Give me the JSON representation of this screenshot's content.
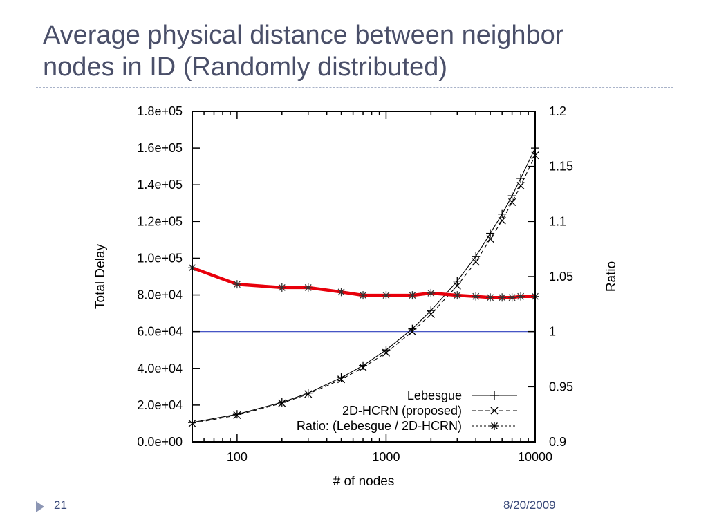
{
  "slide": {
    "title_line1": "Average physical distance between neighbor",
    "title_line2": "nodes in ID (Randomly distributed)",
    "page_number": "21",
    "date": "8/20/2009"
  },
  "chart_data": {
    "type": "line",
    "xlabel": "# of nodes",
    "ylabel_left": "Total Delay",
    "ylabel_right": "Ratio",
    "x_scale": "log",
    "xlim": [
      50,
      10000
    ],
    "ylim_left": [
      0,
      180000
    ],
    "ylim_right": [
      0.9,
      1.2
    ],
    "x_ticks": [
      100,
      1000,
      10000
    ],
    "x_tick_labels": [
      "100",
      "1000",
      "10000"
    ],
    "y_left_ticks": [
      0,
      20000,
      40000,
      60000,
      80000,
      100000,
      120000,
      140000,
      160000,
      180000
    ],
    "y_left_tick_labels": [
      "0.0e+00",
      "2.0e+04",
      "4.0e+04",
      "6.0e+04",
      "8.0e+04",
      "1.0e+05",
      "1.2e+05",
      "1.4e+05",
      "1.6e+05",
      "1.8e+05"
    ],
    "y_right_ticks": [
      0.9,
      0.95,
      1.0,
      1.05,
      1.1,
      1.15,
      1.2
    ],
    "y_right_tick_labels": [
      "0.9",
      "0.95",
      "1",
      "1.05",
      "1.1",
      "1.15",
      "1.2"
    ],
    "grid": false,
    "legend_position": "bottom-right",
    "x": [
      50,
      100,
      200,
      300,
      500,
      700,
      1000,
      1500,
      2000,
      3000,
      4000,
      5000,
      6000,
      7000,
      8000,
      10000
    ],
    "series": [
      {
        "name": "Lebesgue",
        "axis": "left",
        "color": "#000000",
        "dash": "solid",
        "marker": "plus",
        "values": [
          10500,
          15000,
          21500,
          26500,
          35000,
          41500,
          50000,
          61500,
          71500,
          87500,
          101000,
          113500,
          124000,
          134000,
          143500,
          160000
        ]
      },
      {
        "name": "2D-HCRN (proposed)",
        "axis": "left",
        "color": "#000000",
        "dash": "dashed",
        "marker": "x",
        "values": [
          10000,
          14500,
          21000,
          26000,
          34000,
          40500,
          48500,
          60000,
          69500,
          85000,
          98000,
          110500,
          120500,
          130500,
          139500,
          156000
        ]
      },
      {
        "name": "Ratio: (Lebesgue / 2D-HCRN)",
        "axis": "right",
        "color": "#e8000b",
        "dash": "dotted",
        "marker": "asterisk",
        "values": [
          1.058,
          1.043,
          1.04,
          1.04,
          1.036,
          1.033,
          1.033,
          1.033,
          1.035,
          1.033,
          1.032,
          1.031,
          1.031,
          1.031,
          1.032,
          1.032
        ]
      }
    ],
    "reference_line": {
      "axis": "right",
      "value": 1.0,
      "color": "#2b3dbd"
    }
  }
}
